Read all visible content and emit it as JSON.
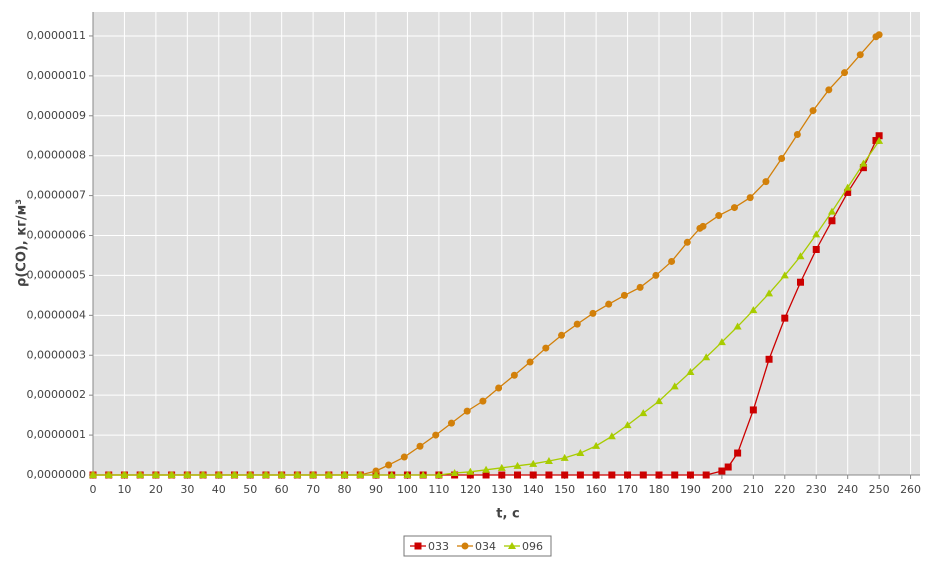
{
  "chart_data": {
    "type": "line",
    "xlabel": "t, c",
    "ylabel": "ρ(CO), кг/м³",
    "xlim": [
      0,
      263
    ],
    "ylim": [
      0,
      1.16e-06
    ],
    "xticks": [
      0,
      10,
      20,
      30,
      40,
      50,
      60,
      70,
      80,
      90,
      100,
      110,
      120,
      130,
      140,
      150,
      160,
      170,
      180,
      190,
      200,
      210,
      220,
      230,
      240,
      250,
      260
    ],
    "yticks": [
      {
        "value": 0,
        "label": "0,0000000"
      },
      {
        "value": 1e-07,
        "label": "0,0000001"
      },
      {
        "value": 2e-07,
        "label": "0,0000002"
      },
      {
        "value": 3e-07,
        "label": "0,0000003"
      },
      {
        "value": 4e-07,
        "label": "0,0000004"
      },
      {
        "value": 5e-07,
        "label": "0,0000005"
      },
      {
        "value": 6e-07,
        "label": "0,0000006"
      },
      {
        "value": 7e-07,
        "label": "0,0000007"
      },
      {
        "value": 8e-07,
        "label": "0,0000008"
      },
      {
        "value": 9e-07,
        "label": "0,0000009"
      },
      {
        "value": 1e-06,
        "label": "0,0000010"
      },
      {
        "value": 1.1e-06,
        "label": "0,0000011"
      }
    ],
    "grid": true,
    "legend": "bottom",
    "series": [
      {
        "name": "033",
        "color": "#cc0000",
        "marker": "square",
        "x": [
          0,
          5,
          10,
          15,
          20,
          25,
          30,
          35,
          40,
          45,
          50,
          55,
          60,
          65,
          70,
          75,
          80,
          85,
          90,
          95,
          100,
          105,
          110,
          115,
          120,
          125,
          130,
          135,
          140,
          145,
          150,
          155,
          160,
          165,
          170,
          175,
          180,
          185,
          190,
          195,
          200,
          202,
          205,
          210,
          215,
          220,
          225,
          230,
          235,
          240,
          245,
          249,
          250
        ],
        "values": [
          0,
          0,
          0,
          0,
          0,
          0,
          0,
          0,
          0,
          0,
          0,
          0,
          0,
          0,
          0,
          0,
          0,
          0,
          0,
          0,
          0,
          0,
          0,
          0,
          0,
          0,
          0,
          0,
          0,
          0,
          0,
          0,
          0,
          0,
          0,
          0,
          0,
          0,
          0,
          0,
          1e-08,
          2e-08,
          5.5e-08,
          1.63e-07,
          2.9e-07,
          3.93e-07,
          4.83e-07,
          5.65e-07,
          6.37e-07,
          7.08e-07,
          7.7e-07,
          8.38e-07,
          8.5e-07
        ]
      },
      {
        "name": "034",
        "color": "#d2800a",
        "marker": "circle",
        "x": [
          0,
          5,
          10,
          15,
          20,
          25,
          30,
          35,
          40,
          45,
          50,
          55,
          60,
          65,
          70,
          75,
          80,
          85,
          90,
          94,
          99,
          104,
          109,
          114,
          119,
          124,
          129,
          134,
          139,
          144,
          149,
          154,
          159,
          164,
          169,
          174,
          179,
          184,
          189,
          193,
          194,
          199,
          204,
          209,
          214,
          219,
          224,
          229,
          234,
          239,
          244,
          249,
          250
        ],
        "values": [
          0,
          0,
          0,
          0,
          0,
          0,
          0,
          0,
          0,
          0,
          0,
          0,
          0,
          0,
          0,
          0,
          0,
          0,
          1e-08,
          2.5e-08,
          4.5e-08,
          7.2e-08,
          1e-07,
          1.3e-07,
          1.6e-07,
          1.85e-07,
          2.18e-07,
          2.5e-07,
          2.83e-07,
          3.18e-07,
          3.5e-07,
          3.78e-07,
          4.05e-07,
          4.28e-07,
          4.5e-07,
          4.7e-07,
          5e-07,
          5.35e-07,
          5.83e-07,
          6.18e-07,
          6.23e-07,
          6.5e-07,
          6.7e-07,
          6.95e-07,
          7.35e-07,
          7.93e-07,
          8.53e-07,
          9.13e-07,
          9.65e-07,
          1.008e-06,
          1.053e-06,
          1.098e-06,
          1.103e-06
        ]
      },
      {
        "name": "096",
        "color": "#a8cc00",
        "marker": "triangle",
        "x": [
          0,
          5,
          10,
          15,
          20,
          25,
          30,
          35,
          40,
          45,
          50,
          55,
          60,
          65,
          70,
          75,
          80,
          85,
          90,
          95,
          100,
          105,
          110,
          115,
          120,
          125,
          130,
          135,
          140,
          145,
          150,
          155,
          160,
          165,
          170,
          175,
          180,
          185,
          190,
          195,
          200,
          205,
          210,
          215,
          220,
          225,
          230,
          235,
          240,
          245,
          250
        ],
        "values": [
          0,
          0,
          0,
          0,
          0,
          0,
          0,
          0,
          0,
          0,
          0,
          0,
          0,
          0,
          0,
          0,
          0,
          0,
          0,
          0,
          0,
          0,
          0,
          5e-09,
          8e-09,
          1.3e-08,
          1.8e-08,
          2.3e-08,
          2.8e-08,
          3.5e-08,
          4.3e-08,
          5.5e-08,
          7.3e-08,
          9.7e-08,
          1.25e-07,
          1.55e-07,
          1.85e-07,
          2.22e-07,
          2.58e-07,
          2.95e-07,
          3.33e-07,
          3.72e-07,
          4.13e-07,
          4.55e-07,
          5e-07,
          5.48e-07,
          6.03e-07,
          6.6e-07,
          7.2e-07,
          7.8e-07,
          8.37e-07
        ]
      }
    ]
  }
}
